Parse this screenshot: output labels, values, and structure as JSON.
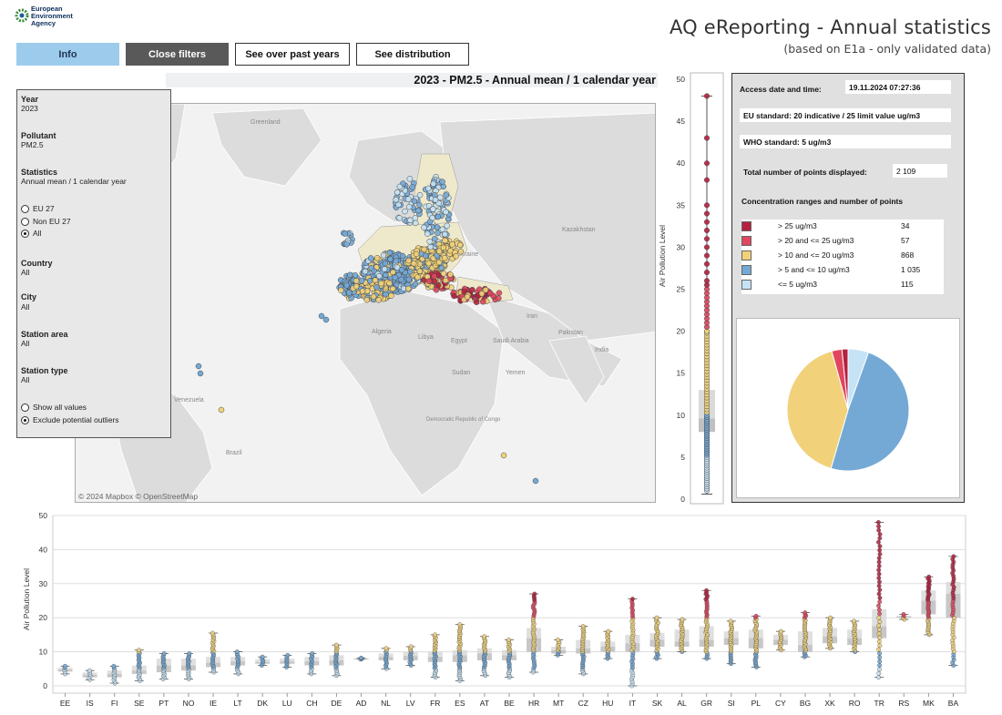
{
  "header": {
    "logo_text": [
      "European",
      "Environment",
      "Agency"
    ],
    "title": "AQ eReporting - Annual statistics",
    "subtitle": "(based on E1a - only validated data)"
  },
  "buttons": {
    "info": "Info",
    "close_filters": "Close filters",
    "past_years": "See over past years",
    "distribution": "See distribution"
  },
  "map": {
    "title": "2023 - PM2.5 - Annual mean / 1 calendar year",
    "attribution": "© 2024 Mapbox © OpenStreetMap",
    "place_labels": [
      "Greenland",
      "Ukraine",
      "Kazakhstan",
      "Algeria",
      "Libya",
      "Egypt",
      "Saudi Arabia",
      "Iran",
      "Pakistan",
      "India",
      "Sudan",
      "Yemen",
      "Venezuela",
      "Brazil",
      "Democratic Republic of Congo"
    ]
  },
  "filters": {
    "year": {
      "label": "Year",
      "value": "2023"
    },
    "pollutant": {
      "label": "Pollutant",
      "value": "PM2.5"
    },
    "statistics": {
      "label": "Statistics",
      "value": "Annual mean / 1 calendar year"
    },
    "region_options": [
      {
        "label": "EU 27",
        "selected": false
      },
      {
        "label": "Non EU 27",
        "selected": false
      },
      {
        "label": "All",
        "selected": true
      }
    ],
    "country": {
      "label": "Country",
      "value": "All"
    },
    "city": {
      "label": "City",
      "value": "All"
    },
    "station_area": {
      "label": "Station area",
      "value": "All"
    },
    "station_type": {
      "label": "Station type",
      "value": "All"
    },
    "value_options": [
      {
        "label": "Show all values",
        "selected": false
      },
      {
        "label": "Exclude potential outliers",
        "selected": true
      }
    ]
  },
  "info_panel": {
    "access_label": "Access date and time:",
    "access_value": "19.11.2024 07:27:36",
    "eu_standard": "EU standard: 20 indicative / 25 limit value ug/m3",
    "who_standard": "WHO standard: 5 ug/m3",
    "total_label": "Total number of points displayed:",
    "total_value": "2 109",
    "ranges_title": "Concentration ranges and number of points",
    "ranges": [
      {
        "label": "> 25 ug/m3",
        "count": "34",
        "color": "#b5213f"
      },
      {
        "label": "> 20 and <= 25 ug/m3",
        "count": "57",
        "color": "#e0475f"
      },
      {
        "label": "> 10 and <= 20 ug/m3",
        "count": "868",
        "color": "#f1d27a"
      },
      {
        "label": "> 5 and <= 10 ug/m3",
        "count": "1 035",
        "color": "#74a9d6"
      },
      {
        "label": "<= 5 ug/m3",
        "count": "115",
        "color": "#c6e3f5"
      }
    ]
  },
  "chart_data": [
    {
      "type": "pie",
      "categories": [
        "> 25 ug/m3",
        "> 20 and <= 25 ug/m3",
        "> 10 and <= 20 ug/m3",
        "> 5 and <= 10 ug/m3",
        "<= 5 ug/m3"
      ],
      "values": [
        34,
        57,
        868,
        1035,
        115
      ]
    },
    {
      "type": "box",
      "ylabel": "Air Pollution Level",
      "ylim": [
        0,
        50
      ],
      "yticks": [
        0,
        5,
        10,
        15,
        20,
        25,
        30,
        35,
        40,
        45,
        50
      ],
      "box": {
        "min": 0.6,
        "q1": 8,
        "median": 9.6,
        "q3": 13,
        "max": 48
      }
    },
    {
      "type": "box",
      "ylabel": "Air Pollution Level",
      "ylim": [
        0,
        50
      ],
      "yticks": [
        0,
        10,
        20,
        30,
        40,
        50
      ],
      "categories": [
        "EE",
        "IS",
        "FI",
        "SE",
        "PT",
        "NO",
        "IE",
        "LT",
        "DK",
        "LU",
        "CH",
        "DE",
        "AD",
        "NL",
        "LV",
        "FR",
        "ES",
        "AT",
        "BE",
        "HR",
        "MT",
        "CZ",
        "HU",
        "IT",
        "SK",
        "AL",
        "GR",
        "SI",
        "PL",
        "CY",
        "BG",
        "XK",
        "RO",
        "TR",
        "RS",
        "MK",
        "BA"
      ],
      "boxes": [
        {
          "min": 3.5,
          "q1": 4.2,
          "median": 4.8,
          "q3": 5.3,
          "max": 5.8
        },
        {
          "min": 1.8,
          "q1": 2.5,
          "median": 3.2,
          "q3": 3.9,
          "max": 4.5
        },
        {
          "min": 0.8,
          "q1": 2.5,
          "median": 3.5,
          "q3": 4.5,
          "max": 5.8
        },
        {
          "min": 1.5,
          "q1": 3.5,
          "median": 4.5,
          "q3": 6.0,
          "max": 10.5
        },
        {
          "min": 2.0,
          "q1": 4.0,
          "median": 6.0,
          "q3": 8.0,
          "max": 9.5
        },
        {
          "min": 2.0,
          "q1": 4.5,
          "median": 6.0,
          "q3": 8.0,
          "max": 9.5
        },
        {
          "min": 4.0,
          "q1": 5.5,
          "median": 6.8,
          "q3": 8.5,
          "max": 15.5
        },
        {
          "min": 3.5,
          "q1": 6.0,
          "median": 7.2,
          "q3": 8.5,
          "max": 10.0
        },
        {
          "min": 6.0,
          "q1": 6.5,
          "median": 7.0,
          "q3": 7.8,
          "max": 8.5
        },
        {
          "min": 5.5,
          "q1": 6.5,
          "median": 7.2,
          "q3": 8.0,
          "max": 9.0
        },
        {
          "min": 3.5,
          "q1": 6.0,
          "median": 7.2,
          "q3": 8.5,
          "max": 9.5
        },
        {
          "min": 3.0,
          "q1": 6.0,
          "median": 7.5,
          "q3": 9.0,
          "max": 12.0
        },
        {
          "min": 7.8,
          "q1": 7.9,
          "median": 8.0,
          "q3": 8.1,
          "max": 8.2
        },
        {
          "min": 5.0,
          "q1": 7.5,
          "median": 8.5,
          "q3": 9.5,
          "max": 11.0
        },
        {
          "min": 6.0,
          "q1": 7.5,
          "median": 8.8,
          "q3": 10.0,
          "max": 11.5
        },
        {
          "min": 2.5,
          "q1": 7.0,
          "median": 8.5,
          "q3": 10.0,
          "max": 15.0
        },
        {
          "min": 1.5,
          "q1": 7.0,
          "median": 9.0,
          "q3": 10.5,
          "max": 18.0
        },
        {
          "min": 3.0,
          "q1": 7.5,
          "median": 9.5,
          "q3": 11.0,
          "max": 14.5
        },
        {
          "min": 2.5,
          "q1": 7.5,
          "median": 9.0,
          "q3": 10.5,
          "max": 13.5
        },
        {
          "min": 4.0,
          "q1": 10.0,
          "median": 14.0,
          "q3": 17.0,
          "max": 27.0
        },
        {
          "min": 9.0,
          "q1": 9.5,
          "median": 10.5,
          "q3": 11.5,
          "max": 13.5
        },
        {
          "min": 3.5,
          "q1": 9.5,
          "median": 11.0,
          "q3": 13.5,
          "max": 17.5
        },
        {
          "min": 8.0,
          "q1": 10.0,
          "median": 11.5,
          "q3": 13.0,
          "max": 16.0
        },
        {
          "min": 0.0,
          "q1": 10.0,
          "median": 12.5,
          "q3": 15.0,
          "max": 25.5
        },
        {
          "min": 8.0,
          "q1": 11.5,
          "median": 13.5,
          "q3": 15.5,
          "max": 20.0
        },
        {
          "min": 10.0,
          "q1": 11.5,
          "median": 13.0,
          "q3": 16.5,
          "max": 19.5
        },
        {
          "min": 8.0,
          "q1": 11.5,
          "median": 13.5,
          "q3": 17.5,
          "max": 28.0
        },
        {
          "min": 6.5,
          "q1": 12.0,
          "median": 14.0,
          "q3": 16.0,
          "max": 19.0
        },
        {
          "min": 5.5,
          "q1": 11.0,
          "median": 14.0,
          "q3": 16.5,
          "max": 20.5
        },
        {
          "min": 10.5,
          "q1": 12.0,
          "median": 13.5,
          "q3": 15.0,
          "max": 16.0
        },
        {
          "min": 8.5,
          "q1": 10.0,
          "median": 12.0,
          "q3": 16.0,
          "max": 21.5
        },
        {
          "min": 11.0,
          "q1": 12.5,
          "median": 14.5,
          "q3": 17.0,
          "max": 20.0
        },
        {
          "min": 10.0,
          "q1": 12.0,
          "median": 14.0,
          "q3": 16.5,
          "max": 19.0
        },
        {
          "min": 2.5,
          "q1": 14.0,
          "median": 17.5,
          "q3": 22.5,
          "max": 48.0
        },
        {
          "min": 19.5,
          "q1": 20.0,
          "median": 20.3,
          "q3": 20.6,
          "max": 21.0
        },
        {
          "min": 15.0,
          "q1": 21.0,
          "median": 25.0,
          "q3": 28.0,
          "max": 32.0
        },
        {
          "min": 6.0,
          "q1": 20.0,
          "median": 27.0,
          "q3": 30.5,
          "max": 38.0
        }
      ]
    }
  ]
}
